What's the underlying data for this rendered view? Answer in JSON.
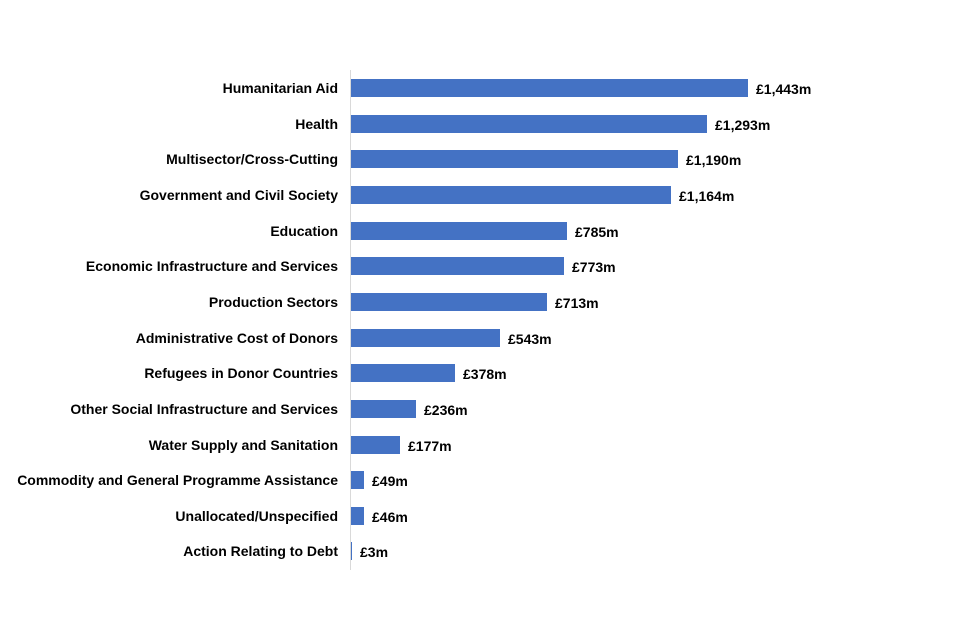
{
  "chart_data": {
    "type": "bar",
    "orientation": "horizontal",
    "title": "",
    "xlabel": "",
    "ylabel": "",
    "categories": [
      "Humanitarian Aid",
      "Health",
      "Multisector/Cross-Cutting",
      "Government and Civil Society",
      "Education",
      "Economic Infrastructure and Services",
      "Production Sectors",
      "Administrative Cost of Donors",
      "Refugees in Donor Countries",
      "Other Social Infrastructure and Services",
      "Water Supply and Sanitation",
      "Commodity and General Programme Assistance",
      "Unallocated/Unspecified",
      "Action Relating to Debt"
    ],
    "values": [
      1443,
      1293,
      1190,
      1164,
      785,
      773,
      713,
      543,
      378,
      236,
      177,
      49,
      46,
      3
    ],
    "value_labels": [
      "£1,443m",
      "£1,293m",
      "£1,190m",
      "£1,164m",
      "£785m",
      "£773m",
      "£713m",
      "£543m",
      "£378m",
      "£236m",
      "£177m",
      "£49m",
      "£46m",
      "£3m"
    ],
    "unit": "£ million",
    "xlim": [
      0,
      1443
    ],
    "grid": false,
    "legend": null,
    "bar_color": "#4472c4"
  }
}
